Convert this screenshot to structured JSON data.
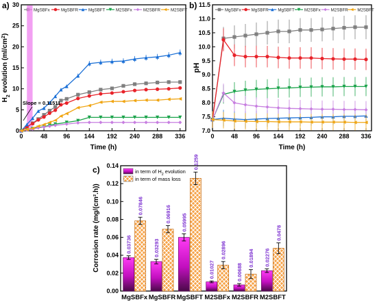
{
  "panels": [
    {
      "panel_label": "a)",
      "chart_data": {
        "type": "line",
        "xlabel": "Time (h)",
        "ylabel_parts": [
          "H",
          "2",
          " evolution (ml/cm",
          "2",
          ")"
        ],
        "xlim": [
          0,
          348
        ],
        "ylim": [
          0,
          30
        ],
        "xticks": [
          0,
          48,
          96,
          144,
          192,
          240,
          288,
          336
        ],
        "yticks": [
          0,
          5,
          10,
          15,
          20,
          25,
          30
        ],
        "annotation": "Slope = 0.11511",
        "highlight_band_x": [
          12,
          24
        ],
        "legend_position": "top",
        "series": [
          {
            "name": "MgSBFx",
            "color": "#808080",
            "marker": "square",
            "x": [
              0,
              4,
              8,
              12,
              16,
              20,
              24,
              36,
              48,
              60,
              72,
              84,
              96,
              120,
              144,
              168,
              192,
              216,
              240,
              264,
              288,
              312,
              336
            ],
            "y": [
              0,
              0.3,
              0.6,
              0.9,
              1.2,
              1.5,
              1.8,
              2.8,
              3.8,
              4.8,
              5.7,
              7.2,
              7.6,
              8.6,
              9.2,
              9.8,
              10.1,
              10.7,
              11.1,
              11.3,
              11.5,
              11.6,
              11.6
            ]
          },
          {
            "name": "MgSBFR",
            "color": "#e8232a",
            "marker": "circle",
            "x": [
              0,
              4,
              8,
              12,
              16,
              20,
              24,
              36,
              48,
              60,
              72,
              84,
              96,
              120,
              144,
              168,
              192,
              216,
              240,
              264,
              288,
              312,
              336
            ],
            "y": [
              0,
              0.3,
              0.6,
              0.9,
              1.2,
              1.5,
              1.7,
              2.6,
              3.3,
              4.2,
              4.9,
              6.2,
              6.6,
              7.7,
              8.3,
              8.8,
              9.0,
              9.3,
              9.6,
              9.8,
              9.9,
              10.0,
              10.2
            ]
          },
          {
            "name": "MgSBFT",
            "color": "#1a6fd6",
            "marker": "triangle-up",
            "x": [
              0,
              4,
              8,
              12,
              16,
              20,
              24,
              36,
              48,
              60,
              72,
              84,
              96,
              120,
              144,
              168,
              192,
              216,
              240,
              264,
              288,
              312,
              336
            ],
            "y": [
              0,
              0.5,
              1.0,
              1.5,
              2.0,
              2.5,
              3.0,
              4.7,
              5.4,
              6.7,
              8.2,
              9.8,
              10.6,
              13.1,
              16.0,
              16.3,
              16.5,
              16.6,
              17.1,
              17.4,
              17.6,
              18.0,
              18.6
            ]
          },
          {
            "name": "M2SBFx",
            "color": "#1aa34a",
            "marker": "triangle-down",
            "x": [
              0,
              12,
              24,
              36,
              48,
              60,
              72,
              96,
              120,
              144,
              168,
              192,
              216,
              240,
              264,
              288,
              312,
              336
            ],
            "y": [
              0,
              0.2,
              0.5,
              0.8,
              1.0,
              1.3,
              1.6,
              2.0,
              2.4,
              3.2,
              3.2,
              3.2,
              3.2,
              3.2,
              3.2,
              3.2,
              3.2,
              3.2
            ]
          },
          {
            "name": "M2SBFR",
            "color": "#c77ee0",
            "marker": "diamond",
            "x": [
              0,
              12,
              24,
              36,
              48,
              60,
              72,
              96,
              120,
              144,
              168,
              192,
              216,
              240,
              264,
              288,
              312,
              336
            ],
            "y": [
              0,
              0.2,
              0.4,
              0.7,
              0.9,
              1.1,
              1.3,
              1.6,
              1.9,
              2.0,
              2.0,
              2.0,
              2.0,
              2.0,
              2.0,
              2.0,
              2.0,
              2.0
            ]
          },
          {
            "name": "M2SBFT",
            "color": "#f0a512",
            "marker": "triangle-left",
            "x": [
              0,
              12,
              24,
              36,
              48,
              60,
              72,
              84,
              96,
              120,
              144,
              168,
              192,
              216,
              240,
              264,
              288,
              312,
              336
            ],
            "y": [
              0,
              0.3,
              0.6,
              1.1,
              1.5,
              2.0,
              2.5,
              3.5,
              4.1,
              5.5,
              6.0,
              6.8,
              7.0,
              7.0,
              7.2,
              7.3,
              7.3,
              7.5,
              7.6
            ]
          }
        ]
      }
    },
    {
      "panel_label": "b)",
      "chart_data": {
        "type": "line",
        "xlabel": "Time (h)",
        "ylabel": "pH",
        "xlim": [
          0,
          348
        ],
        "ylim": [
          7.0,
          11.5
        ],
        "xticks": [
          0,
          48,
          96,
          144,
          192,
          240,
          288,
          336
        ],
        "yticks": [
          7.0,
          7.5,
          8.0,
          8.5,
          9.0,
          9.5,
          10.0,
          10.5,
          11.0,
          11.5
        ],
        "legend_position": "top",
        "series": [
          {
            "name": "MgSBFx",
            "color": "#808080",
            "marker": "square",
            "x": [
              0,
              24,
              48,
              72,
              96,
              120,
              144,
              168,
              192,
              216,
              240,
              264,
              288,
              312,
              336
            ],
            "y": [
              7.4,
              10.3,
              10.35,
              10.4,
              10.45,
              10.5,
              10.55,
              10.55,
              10.6,
              10.6,
              10.62,
              10.65,
              10.68,
              10.7,
              10.7
            ]
          },
          {
            "name": "MgSBFR",
            "color": "#e8232a",
            "marker": "circle",
            "x": [
              0,
              24,
              48,
              72,
              96,
              120,
              144,
              168,
              192,
              216,
              240,
              264,
              288,
              312,
              336
            ],
            "y": [
              7.4,
              10.25,
              9.7,
              9.65,
              9.65,
              9.65,
              9.62,
              9.6,
              9.6,
              9.6,
              9.58,
              9.57,
              9.56,
              9.56,
              9.55
            ]
          },
          {
            "name": "MgSBFT",
            "color": "#1a6fd6",
            "marker": "triangle-up",
            "x": [
              0,
              24,
              48,
              72,
              96,
              120,
              144,
              168,
              192,
              216,
              240,
              264,
              288,
              312,
              336
            ],
            "y": [
              7.4,
              7.45,
              7.42,
              7.4,
              7.42,
              7.44,
              7.45,
              7.46,
              7.47,
              7.48,
              7.5,
              7.5,
              7.52,
              7.52,
              7.53
            ]
          },
          {
            "name": "M2SBFx",
            "color": "#1aa34a",
            "marker": "triangle-down",
            "x": [
              0,
              24,
              48,
              72,
              96,
              120,
              144,
              168,
              192,
              216,
              240,
              264,
              288,
              312,
              336
            ],
            "y": [
              7.4,
              8.3,
              8.4,
              8.45,
              8.48,
              8.5,
              8.52,
              8.53,
              8.55,
              8.56,
              8.57,
              8.57,
              8.58,
              8.58,
              8.58
            ]
          },
          {
            "name": "M2SBFR",
            "color": "#c77ee0",
            "marker": "diamond",
            "x": [
              0,
              24,
              48,
              72,
              96,
              120,
              144,
              168,
              192,
              216,
              240,
              264,
              288,
              312,
              336
            ],
            "y": [
              7.4,
              8.35,
              8.0,
              7.93,
              7.88,
              7.85,
              7.82,
              7.8,
              7.79,
              7.78,
              7.77,
              7.77,
              7.76,
              7.76,
              7.75
            ]
          },
          {
            "name": "M2SBFT",
            "color": "#f0a512",
            "marker": "triangle-left",
            "x": [
              0,
              24,
              48,
              72,
              96,
              120,
              144,
              168,
              192,
              216,
              240,
              264,
              288,
              312,
              336
            ],
            "y": [
              7.4,
              7.38,
              7.35,
              7.34,
              7.33,
              7.33,
              7.32,
              7.32,
              7.32,
              7.31,
              7.31,
              7.31,
              7.31,
              7.3,
              7.3
            ]
          }
        ]
      }
    },
    {
      "panel_label": "c)",
      "chart_data": {
        "type": "bar",
        "ylabel": "Corrosion rate (mg/(cm².h))",
        "categories": [
          "MgSBFx",
          "MgSBFR",
          "MgSBFT",
          "M2SBFx",
          "M2SBFR",
          "M2SBFT"
        ],
        "ylim": [
          0,
          0.14
        ],
        "yticks": [
          0.0,
          0.02,
          0.04,
          0.06,
          0.08,
          0.1,
          0.12,
          0.14
        ],
        "ytick_labels": [
          "0.00",
          "0.02",
          "0.04",
          "0.06",
          "0.08",
          "0.10",
          "0.12",
          "0.14"
        ],
        "legend_position": "top-left",
        "series": [
          {
            "legend_parts": [
              "in term of H",
              "2",
              " evolution"
            ],
            "color": "#e514e0",
            "pattern": "gradient",
            "values": [
              0.03736,
              0.03293,
              0.05995,
              0.01027,
              0.00688,
              0.02276
            ],
            "labels": [
              "0.03736",
              "0.03293",
              "0.05995",
              "0.01027",
              "0.00688",
              "0.02276"
            ],
            "errors": [
              0.002,
              0.0025,
              0.004,
              0.001,
              0.0015,
              0.002
            ]
          },
          {
            "legend_parts": [
              "in term of mass loss"
            ],
            "color": "#f39a3a",
            "pattern": "crosshatch",
            "values": [
              0.07846,
              0.06916,
              0.1259,
              0.02896,
              0.01894,
              0.0478
            ],
            "labels": [
              "0.07846",
              "0.06916",
              "0.1259",
              "0.02896",
              "0.01894",
              "0.0478"
            ],
            "errors": [
              0.004,
              0.004,
              0.007,
              0.004,
              0.005,
              0.006
            ]
          }
        ],
        "value_label_color": "#7b2fd0"
      }
    }
  ]
}
